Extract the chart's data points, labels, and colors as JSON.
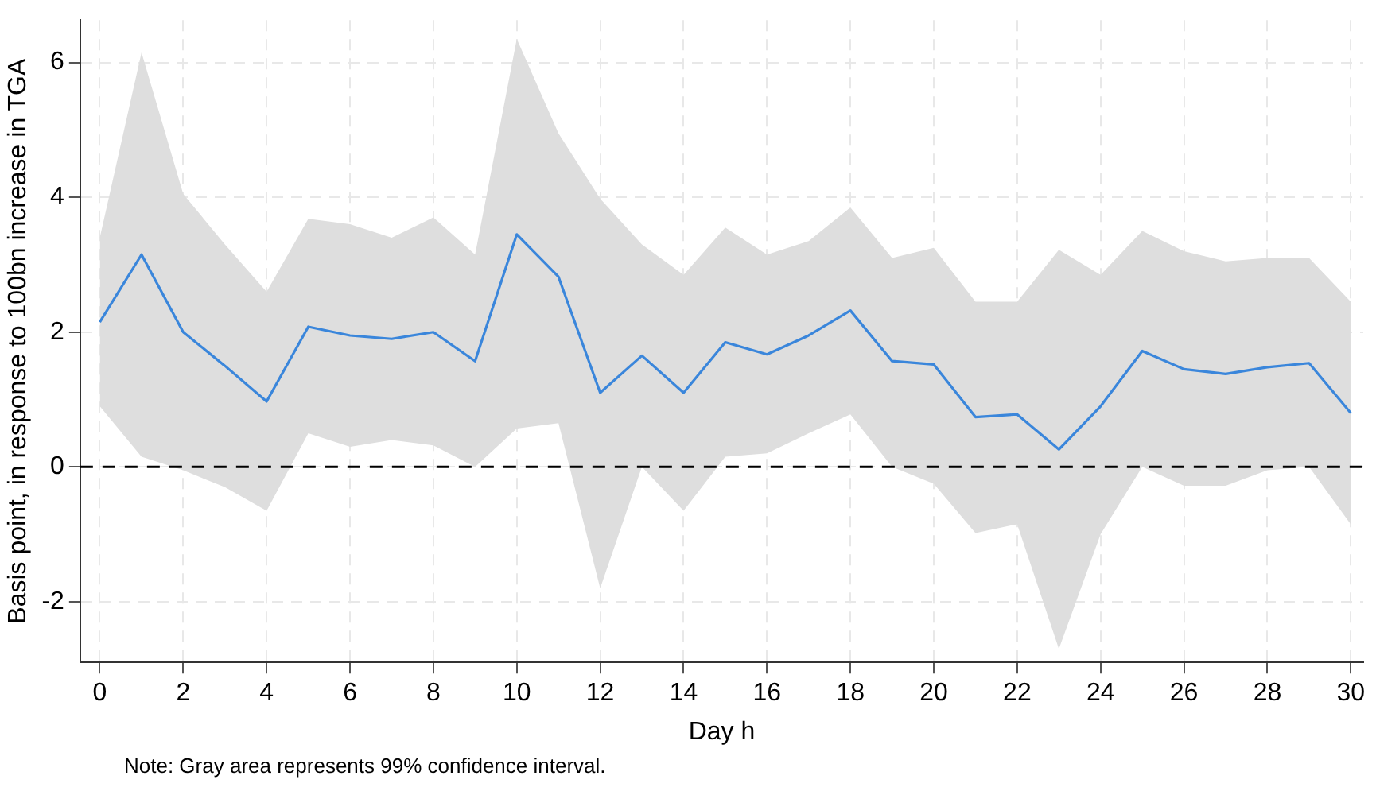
{
  "chart_data": {
    "type": "line",
    "xlabel": "Day h",
    "ylabel": "Basis point, in response to 100bn increase in TGA",
    "x": [
      0,
      1,
      2,
      3,
      4,
      5,
      6,
      7,
      8,
      9,
      10,
      11,
      12,
      13,
      14,
      15,
      16,
      17,
      18,
      19,
      20,
      21,
      22,
      23,
      24,
      25,
      26,
      27,
      28,
      29,
      30
    ],
    "series": [
      {
        "color": "#3a86db",
        "values": [
          2.15,
          3.15,
          2.0,
          1.5,
          0.97,
          2.08,
          1.95,
          1.9,
          2.0,
          1.57,
          3.45,
          2.82,
          1.1,
          1.65,
          1.1,
          1.85,
          1.67,
          1.95,
          2.32,
          1.57,
          1.52,
          0.74,
          0.78,
          0.26,
          0.9,
          1.72,
          1.45,
          1.38,
          1.48,
          1.54,
          0.8
        ],
        "lower": [
          0.9,
          0.15,
          -0.05,
          -0.3,
          -0.65,
          0.5,
          0.3,
          0.4,
          0.32,
          0.0,
          0.57,
          0.65,
          -1.8,
          0.0,
          -0.65,
          0.15,
          0.2,
          0.5,
          0.78,
          0.0,
          -0.25,
          -0.98,
          -0.85,
          -2.7,
          -1.0,
          0.0,
          -0.28,
          -0.28,
          -0.05,
          0.0,
          -0.85
        ],
        "upper": [
          3.4,
          6.15,
          4.05,
          3.3,
          2.6,
          3.68,
          3.6,
          3.4,
          3.7,
          3.15,
          6.35,
          4.95,
          3.98,
          3.3,
          2.85,
          3.55,
          3.15,
          3.35,
          3.85,
          3.1,
          3.25,
          2.45,
          2.45,
          3.22,
          2.85,
          3.5,
          3.2,
          3.05,
          3.1,
          3.1,
          2.45
        ]
      }
    ],
    "xlim": [
      -0.47,
      30.3
    ],
    "xticks": [
      0,
      2,
      4,
      6,
      8,
      10,
      12,
      14,
      16,
      18,
      20,
      22,
      24,
      26,
      28,
      30
    ],
    "ylim": [
      -2.9,
      6.63
    ],
    "yticks": [
      -2,
      0,
      2,
      4,
      6
    ],
    "ref_lines": [
      {
        "axis": "y",
        "value": 0,
        "color": "#000000",
        "line_style": "dashed"
      }
    ],
    "grid": true,
    "legend": false,
    "marker": "none",
    "line_style": "solid",
    "annotations": [
      "Note: Gray area represents 99% confidence interval."
    ]
  }
}
